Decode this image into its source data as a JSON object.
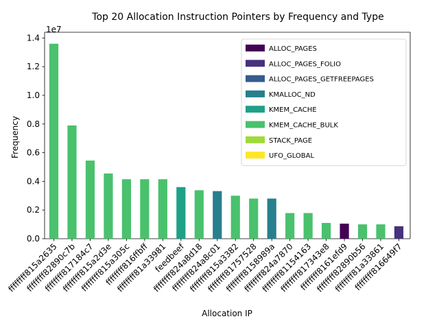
{
  "chart_data": {
    "type": "bar",
    "title": "Top 20 Allocation Instruction Pointers by Frequency and Type",
    "xlabel": "Allocation IP",
    "ylabel": "Frequency",
    "y_offset_label": "1e7",
    "ylim": [
      0,
      14400000
    ],
    "yticks": [
      0,
      2000000,
      4000000,
      6000000,
      8000000,
      10000000,
      12000000,
      14000000
    ],
    "ytick_labels": [
      "0.0",
      "0.2",
      "0.4",
      "0.6",
      "0.8",
      "1.0",
      "1.2",
      "1.4"
    ],
    "grid": false,
    "legend_position": "top-right",
    "legend": [
      {
        "name": "ALLOC_PAGES",
        "color": "#440154"
      },
      {
        "name": "ALLOC_PAGES_FOLIO",
        "color": "#46327e"
      },
      {
        "name": "ALLOC_PAGES_GETFREEPAGES",
        "color": "#365c8d"
      },
      {
        "name": "KMALLOC_ND",
        "color": "#277f8e"
      },
      {
        "name": "KMEM_CACHE",
        "color": "#1fa187"
      },
      {
        "name": "KMEM_CACHE_BULK",
        "color": "#4ac16d"
      },
      {
        "name": "STACK_PAGE",
        "color": "#a0da39"
      },
      {
        "name": "UFO_GLOBAL",
        "color": "#fde725"
      }
    ],
    "categories": [
      "ffffffff815a2635",
      "ffffffff82890c7b",
      "ffffffff817184c7",
      "ffffffff815a2d3e",
      "ffffffff815a305c",
      "ffffffff816ffbff",
      "ffffffff81a33981",
      "feedbeef",
      "ffffffff824a8d18",
      "ffffffff824a8c01",
      "ffffffff815a3382",
      "ffffffff81757528",
      "ffffffff8158989a",
      "ffffffff824a7870",
      "ffffffff81154163",
      "ffffffff817343e8",
      "ffffffff8161efd9",
      "ffffffff82890b56",
      "ffffffff81a33861",
      "ffffffff816649f7"
    ],
    "values": [
      13600000,
      7900000,
      5450000,
      4550000,
      4150000,
      4150000,
      4150000,
      3600000,
      3380000,
      3320000,
      3000000,
      2800000,
      2800000,
      1790000,
      1790000,
      1100000,
      1050000,
      1000000,
      1000000,
      870000
    ],
    "value_types": [
      "KMEM_CACHE_BULK",
      "KMEM_CACHE_BULK",
      "KMEM_CACHE_BULK",
      "KMEM_CACHE_BULK",
      "KMEM_CACHE_BULK",
      "KMEM_CACHE_BULK",
      "KMEM_CACHE_BULK",
      "KMEM_CACHE",
      "KMEM_CACHE_BULK",
      "KMALLOC_ND",
      "KMEM_CACHE_BULK",
      "KMEM_CACHE_BULK",
      "KMALLOC_ND",
      "KMEM_CACHE_BULK",
      "KMEM_CACHE_BULK",
      "KMEM_CACHE_BULK",
      "ALLOC_PAGES",
      "KMEM_CACHE_BULK",
      "KMEM_CACHE_BULK",
      "ALLOC_PAGES_FOLIO"
    ],
    "note_tick_pattern": "bars occupy every other category slot; unbarred slots hold the intervening tick labels"
  }
}
